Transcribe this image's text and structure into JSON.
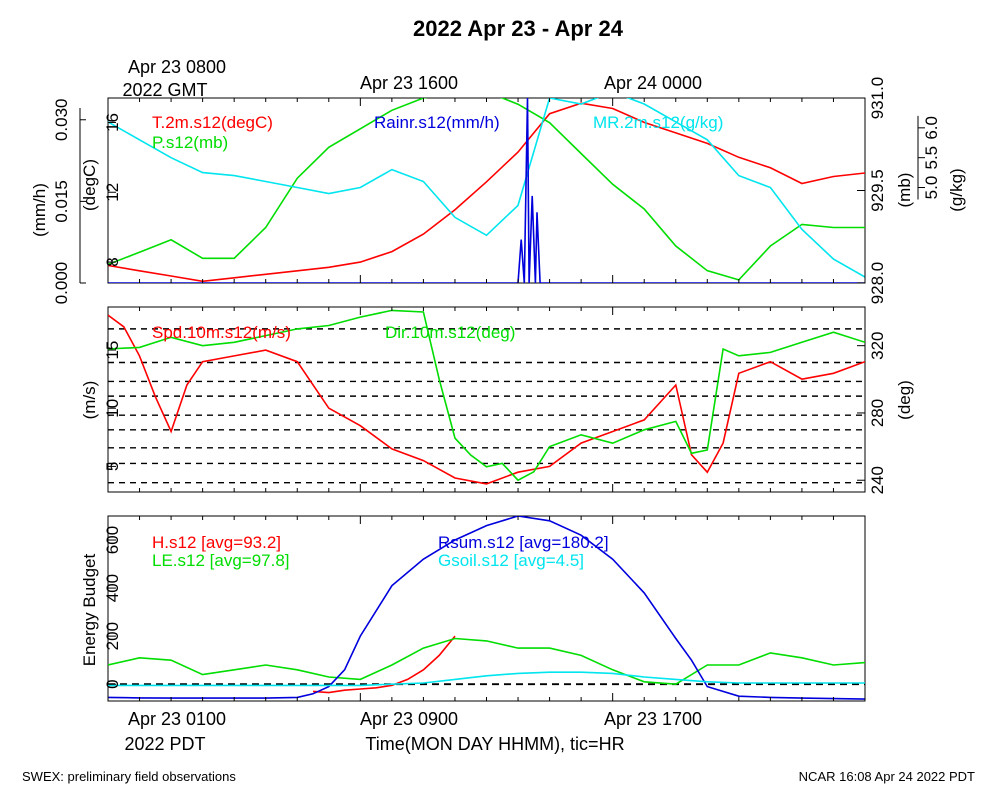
{
  "title": "2022 Apr 23 - Apr 24",
  "top_axis": {
    "labels": [
      "Apr 23 0800",
      "Apr 23 1600",
      "Apr 24 0000"
    ],
    "sublabel": "2022 GMT"
  },
  "bottom_axis": {
    "labels": [
      "Apr 23 0100",
      "Apr 23 0900",
      "Apr 23 1700"
    ],
    "sublabel": "2022 PDT",
    "xlabel": "Time(MON DAY HHMM), tic=HR"
  },
  "footer": {
    "left": "SWEX: preliminary field observations",
    "right": "NCAR 16:08 Apr 24 2022 PDT"
  },
  "colors": {
    "red": "#ff0000",
    "green": "#00dd00",
    "blue": "#0000dd",
    "cyan": "#00e5ee",
    "black": "#000000"
  },
  "chart_data": [
    {
      "type": "line",
      "panel": "top",
      "x_unit": "hours since Apr 23 0000 PDT",
      "xlim": [
        1,
        25
      ],
      "axes": {
        "rain": {
          "label": "(mm/h)",
          "ticks": [
            "0.000",
            "0.015",
            "0.030"
          ],
          "ylim": [
            0,
            0.034
          ]
        },
        "temp": {
          "label": "(degC)",
          "ticks": [
            "8",
            "12",
            "16"
          ],
          "ylim": [
            6.8,
            17.4
          ]
        },
        "pres": {
          "label": "(mb)",
          "ticks": [
            "928.0",
            "929.5",
            "931.0"
          ],
          "ylim": [
            928.0,
            931.0
          ]
        },
        "mr": {
          "label": "(g/kg)",
          "ticks": [
            "5.0",
            "5.5",
            "6.0"
          ],
          "ylim": [
            3.4,
            6.5
          ]
        }
      },
      "series": [
        {
          "name": "T.2m.s12(degC)",
          "axis": "temp",
          "color": "red",
          "x": [
            1,
            2,
            3,
            4,
            5,
            6,
            7,
            8,
            9,
            10,
            11,
            12,
            13,
            14,
            15,
            16,
            17,
            18,
            19,
            20,
            21,
            22,
            23,
            24,
            25
          ],
          "y": [
            7.8,
            7.5,
            7.2,
            6.9,
            7.1,
            7.3,
            7.5,
            7.7,
            8.0,
            8.6,
            9.6,
            11.0,
            12.6,
            14.3,
            16.5,
            17.1,
            16.8,
            16.0,
            15.4,
            14.8,
            14.0,
            13.4,
            12.5,
            12.9,
            13.1
          ]
        },
        {
          "name": "P.s12(mb)",
          "axis": "pres",
          "color": "green",
          "x": [
            1,
            2,
            3,
            4,
            5,
            6,
            7,
            8,
            9,
            10,
            11,
            12,
            13,
            14,
            15,
            16,
            17,
            18,
            19,
            20,
            21,
            22,
            23,
            24,
            25
          ],
          "y": [
            928.3,
            928.5,
            928.7,
            928.4,
            928.4,
            928.9,
            929.7,
            930.2,
            930.5,
            930.8,
            931.0,
            931.1,
            931.1,
            930.9,
            930.6,
            930.1,
            929.6,
            929.2,
            928.6,
            928.2,
            928.05,
            928.6,
            928.95,
            928.9,
            928.9
          ]
        },
        {
          "name": "MR.2m.s12(g/kg)",
          "axis": "mr",
          "color": "cyan",
          "x": [
            1,
            2,
            3,
            4,
            5,
            6,
            7,
            8,
            9,
            10,
            11,
            12,
            13,
            14,
            15,
            16,
            17,
            18,
            19,
            20,
            21,
            22,
            23,
            24,
            25
          ],
          "y": [
            6.1,
            5.8,
            5.5,
            5.25,
            5.2,
            5.1,
            5.0,
            4.9,
            5.0,
            5.3,
            5.1,
            4.5,
            4.2,
            4.7,
            6.5,
            6.4,
            6.6,
            6.4,
            6.1,
            5.8,
            5.2,
            5.0,
            4.3,
            3.8,
            3.5
          ]
        },
        {
          "name": "Rainr.s12(mm/h)",
          "axis": "rain",
          "color": "blue",
          "x": [
            1,
            14.0,
            14.1,
            14.2,
            14.3,
            14.35,
            14.45,
            14.55,
            14.6,
            14.7,
            14.8,
            25
          ],
          "y": [
            0,
            0,
            0.008,
            0,
            0.034,
            0,
            0.016,
            0,
            0.013,
            0,
            0,
            0
          ]
        }
      ]
    },
    {
      "type": "line",
      "panel": "middle",
      "x_unit": "hours since Apr 23 0000 PDT",
      "xlim": [
        1,
        25
      ],
      "axes": {
        "spd": {
          "label": "(m/s)",
          "ticks": [
            "5",
            "10",
            "15"
          ],
          "ylim": [
            2.8,
            18.7
          ]
        },
        "dir": {
          "label": "(deg)",
          "ticks": [
            "240",
            "280",
            "320"
          ],
          "ylim": [
            233,
            343
          ]
        }
      },
      "series": [
        {
          "name": "Spd.10m.s12(m/s)",
          "axis": "spd",
          "color": "red",
          "x": [
            1,
            1.5,
            2,
            2.5,
            3,
            3.5,
            4,
            5,
            6,
            7,
            8,
            9,
            10,
            11,
            12,
            13,
            14,
            15,
            16,
            17,
            18,
            19,
            19.5,
            20,
            20.5,
            21,
            22,
            23,
            24,
            25
          ],
          "y": [
            18.0,
            17.0,
            14.5,
            11.0,
            8.0,
            12.0,
            14.0,
            14.5,
            15.0,
            14.0,
            10.0,
            8.5,
            6.5,
            5.5,
            4.0,
            3.5,
            4.5,
            5.0,
            7.0,
            8.0,
            9.0,
            12.0,
            6.0,
            4.5,
            7.0,
            13.0,
            14.0,
            12.5,
            13.0,
            14.0
          ]
        },
        {
          "name": "Dir.10m.s12(deg)",
          "axis": "dir",
          "color": "green",
          "x": [
            1,
            2,
            3,
            4,
            5,
            6,
            7,
            8,
            9,
            10,
            11,
            11.5,
            12,
            12.5,
            13,
            13.5,
            14,
            14.5,
            15,
            16,
            17,
            18,
            19,
            19.5,
            20,
            20.5,
            21,
            22,
            23,
            24,
            25
          ],
          "y": [
            318,
            319,
            325,
            320,
            322,
            326,
            330,
            332,
            337,
            341,
            340,
            300,
            265,
            255,
            248,
            250,
            240,
            245,
            260,
            267,
            262,
            270,
            275,
            256,
            258,
            318,
            314,
            316,
            322,
            328,
            322
          ]
        }
      ]
    },
    {
      "type": "line",
      "panel": "bottom",
      "x_unit": "hours since Apr 23 0000 PDT",
      "xlim": [
        1,
        25
      ],
      "axes": {
        "energy": {
          "label": "Energy Budget",
          "ticks": [
            "0",
            "200",
            "400",
            "600"
          ],
          "ylim": [
            -70,
            700
          ]
        }
      },
      "series": [
        {
          "name": "H.s12 [avg=93.2]",
          "axis": "energy",
          "color": "red",
          "x": [
            7.5,
            8,
            8.5,
            9,
            9.5,
            10,
            10.5,
            11,
            11.5,
            12
          ],
          "y": [
            -30,
            -35,
            -25,
            -20,
            -15,
            -5,
            20,
            60,
            120,
            200
          ]
        },
        {
          "name": "LE.s12 [avg=97.8]",
          "axis": "energy",
          "color": "green",
          "x": [
            1,
            2,
            3,
            4,
            5,
            6,
            7,
            8,
            9,
            10,
            11,
            12,
            13,
            14,
            15,
            16,
            17,
            18,
            19,
            20,
            21,
            22,
            23,
            24,
            25
          ],
          "y": [
            80,
            110,
            100,
            40,
            60,
            80,
            60,
            30,
            20,
            80,
            150,
            190,
            180,
            150,
            150,
            120,
            60,
            10,
            0,
            80,
            80,
            130,
            110,
            80,
            90
          ]
        },
        {
          "name": "Rsum.s12 [avg=180.2]",
          "axis": "energy",
          "color": "blue",
          "x": [
            1,
            2,
            3,
            4,
            5,
            6,
            7,
            7.5,
            8,
            8.5,
            9,
            10,
            11,
            12,
            13,
            14,
            15,
            16,
            17,
            18,
            19,
            19.5,
            20,
            21,
            22,
            23,
            24,
            25
          ],
          "y": [
            -55,
            -57,
            -58,
            -58,
            -58,
            -58,
            -55,
            -40,
            -10,
            60,
            200,
            410,
            520,
            600,
            660,
            700,
            680,
            620,
            520,
            380,
            190,
            100,
            -10,
            -50,
            -55,
            -58,
            -60,
            -62
          ]
        },
        {
          "name": "Gsoil.s12 [avg=4.5]",
          "axis": "energy",
          "color": "cyan",
          "x": [
            1,
            4,
            7,
            9,
            10,
            11,
            12,
            13,
            14,
            15,
            16,
            17,
            18,
            19,
            20,
            21,
            22,
            25
          ],
          "y": [
            -5,
            -5,
            -5,
            -5,
            0,
            5,
            20,
            35,
            45,
            50,
            50,
            45,
            30,
            20,
            10,
            5,
            5,
            5
          ]
        }
      ]
    }
  ]
}
